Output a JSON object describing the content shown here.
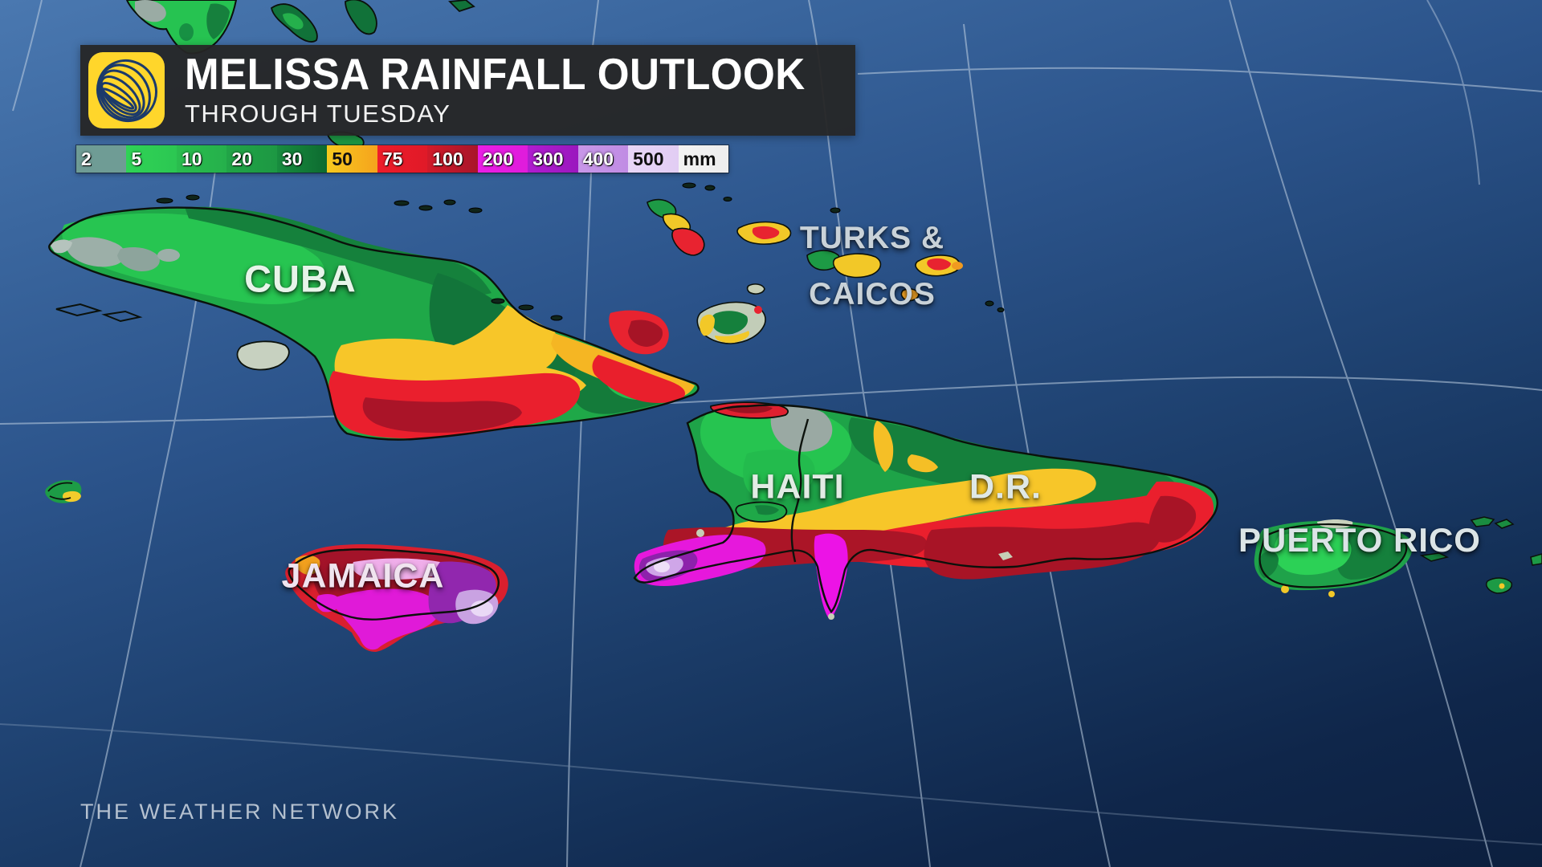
{
  "title_card": {
    "title": "MELISSA RAINFALL OUTLOOK",
    "subtitle": "THROUGH TUESDAY",
    "logo": "weather-network-globe-icon",
    "background": "#262626",
    "logo_background": "#ffd62b",
    "logo_glyph_color": "#1b3a6b"
  },
  "legend": {
    "unit": "mm",
    "items": [
      {
        "label": "2",
        "color": "#6f9c95",
        "color2": "#6f9c95",
        "text": "#ffffff"
      },
      {
        "label": "5",
        "color": "#2fd356",
        "color2": "#2cc752",
        "text": "#ffffff"
      },
      {
        "label": "10",
        "color": "#2abd4e",
        "color2": "#25b04b",
        "text": "#ffffff"
      },
      {
        "label": "20",
        "color": "#21a447",
        "color2": "#1d9843",
        "text": "#ffffff"
      },
      {
        "label": "30",
        "color": "#188c3f",
        "color2": "#0d6b30",
        "text": "#ffffff"
      },
      {
        "label": "50",
        "color": "#f7ca1e",
        "color2": "#f5a31d",
        "text": "#101010"
      },
      {
        "label": "75",
        "color": "#ee1c2a",
        "color2": "#e01a28",
        "text": "#ffffff"
      },
      {
        "label": "100",
        "color": "#d21a29",
        "color2": "#a8152a",
        "text": "#ffffff"
      },
      {
        "label": "200",
        "color": "#ea1ee6",
        "color2": "#df1cdb",
        "text": "#ffffff"
      },
      {
        "label": "300",
        "color": "#b01cd0",
        "color2": "#9a18be",
        "text": "#ffffff"
      },
      {
        "label": "400",
        "color": "#c897e8",
        "color2": "#c08ce4",
        "text": "#ffffff"
      },
      {
        "label": "500",
        "color": "#e8d6f7",
        "color2": "#e2cdf4",
        "text": "#101010"
      },
      {
        "label": "mm",
        "color": "#f3f3f3",
        "color2": "#ededed",
        "text": "#101010"
      }
    ]
  },
  "map_labels": {
    "cuba": "CUBA",
    "turks_line1": "TURKS &",
    "turks_line2": "CAICOS",
    "haiti": "HAITI",
    "dr": "D.R.",
    "jamaica": "JAMAICA",
    "puerto_rico": "PUERTO RICO"
  },
  "watermark": "THE WEATHER NETWORK",
  "map_colors": {
    "ocean_top": "#4a78b0",
    "ocean_bottom": "#0c1f3e",
    "graticule": "#bfd0e2",
    "coastline": "#0b110b",
    "no_data_gray": "#9aa9a3"
  }
}
